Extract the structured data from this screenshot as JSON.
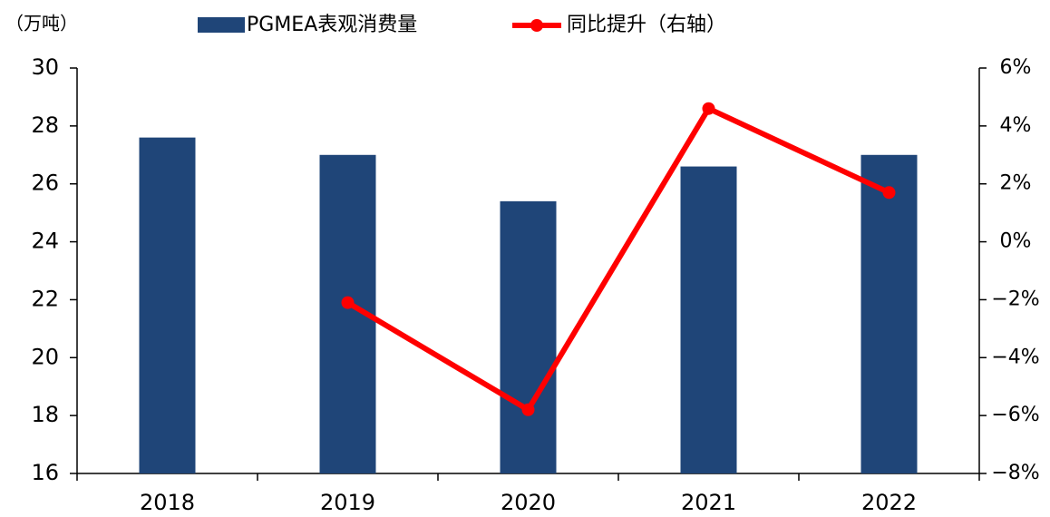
{
  "chart_data": {
    "type": "bar",
    "y_unit_label": "（万吨）",
    "categories": [
      "2018",
      "2019",
      "2020",
      "2021",
      "2022"
    ],
    "series": [
      {
        "name": "PGMEA表观消费量",
        "type": "bar",
        "color": "#1f4578",
        "values": [
          27.6,
          27.0,
          25.4,
          26.6,
          27.0
        ]
      },
      {
        "name": "同比提升（右轴）",
        "type": "line",
        "axis": "y2",
        "color": "#ff0000",
        "values": [
          null,
          -2.1,
          -5.8,
          4.6,
          1.7
        ]
      }
    ],
    "ylim": [
      16,
      30
    ],
    "yticks": [
      16,
      18,
      20,
      22,
      24,
      26,
      28,
      30
    ],
    "y2lim": [
      -8,
      6
    ],
    "y2ticks": [
      {
        "value": -8,
        "label": "−8%"
      },
      {
        "value": -6,
        "label": "−6%"
      },
      {
        "value": -4,
        "label": "−4%"
      },
      {
        "value": -2,
        "label": "−2%"
      },
      {
        "value": 0,
        "label": "0%"
      },
      {
        "value": 2,
        "label": "2%"
      },
      {
        "value": 4,
        "label": "4%"
      },
      {
        "value": 6,
        "label": "6%"
      }
    ],
    "legend": "top"
  }
}
